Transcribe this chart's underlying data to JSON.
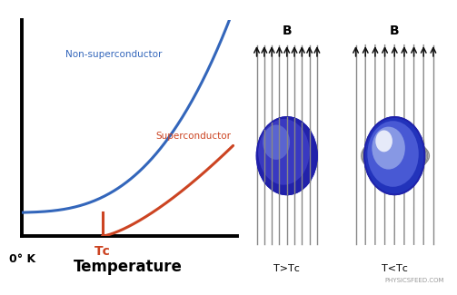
{
  "non_super_color": "#3366bb",
  "super_color": "#cc4422",
  "tc_color": "#cc4422",
  "line_color": "#888888",
  "arrow_color": "#111111",
  "xlabel": "Temperature",
  "label_0k": "0° K",
  "label_tc": "Tᴄ",
  "label_non_super": "Non-superconductor",
  "label_super": "Superconductor",
  "label_B_left": "B",
  "label_B_right": "B",
  "label_T_gt": "T>Tᴄ",
  "label_T_lt": "T<Tᴄ",
  "label_website": "PHYSICSFEED.COM"
}
